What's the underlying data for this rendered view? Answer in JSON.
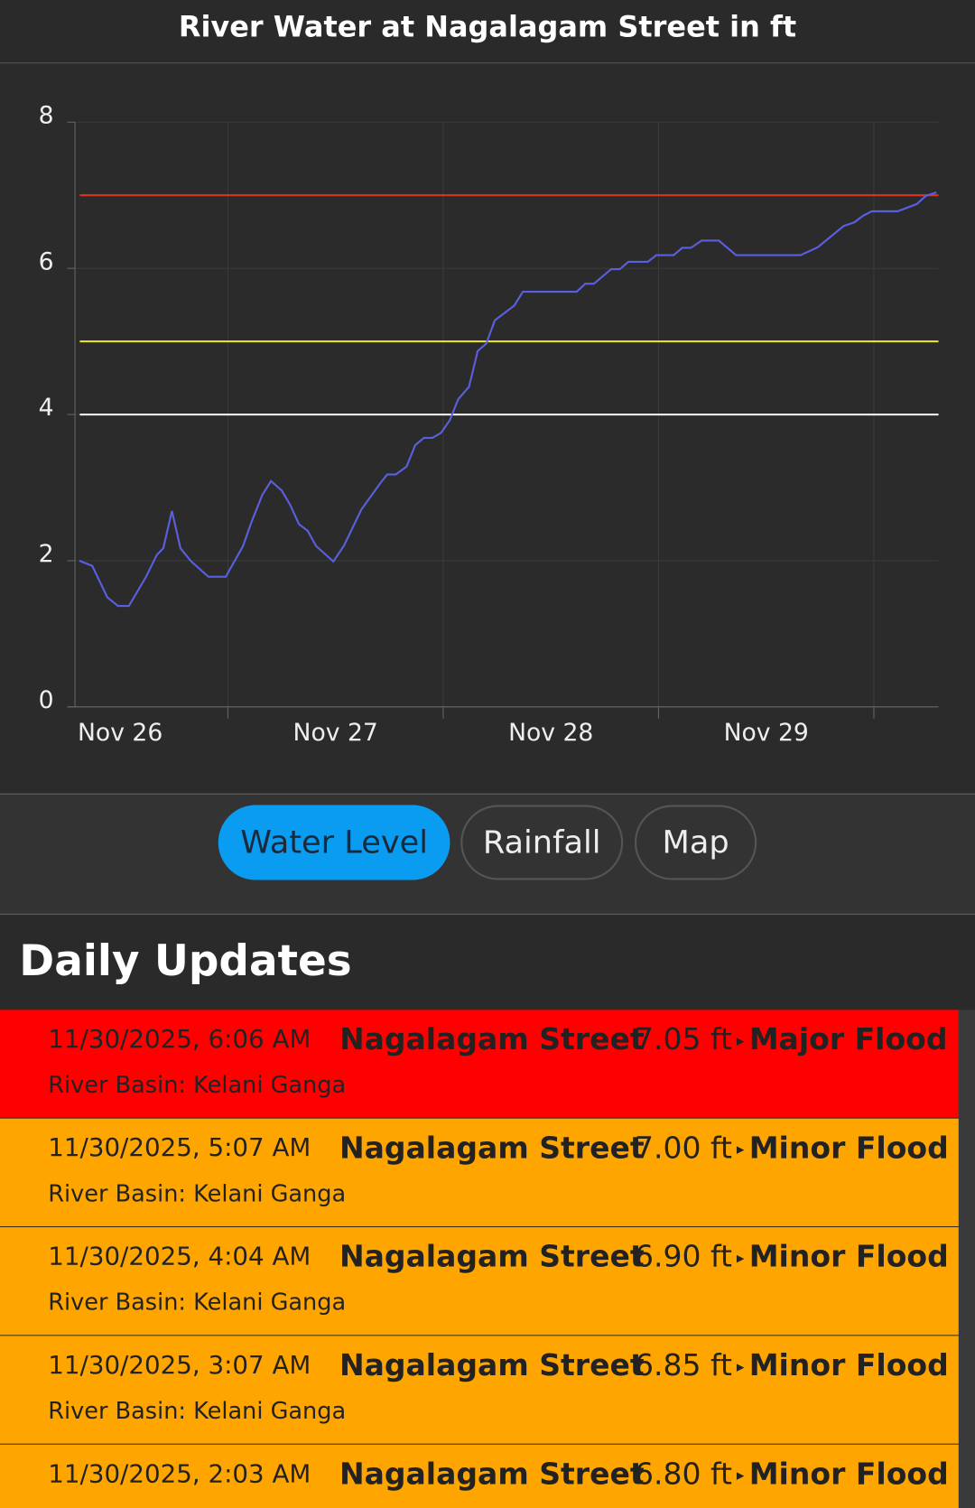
{
  "header": {
    "title": "River Water at Nagalagam Street in ft"
  },
  "chart_data": {
    "type": "line",
    "xlim": [
      26.29,
      30.3
    ],
    "xticks": [
      {
        "value": 26.5,
        "label": "Nov 26"
      },
      {
        "value": 27.5,
        "label": "Nov 27"
      },
      {
        "value": 28.5,
        "label": "Nov 28"
      },
      {
        "value": 29.5,
        "label": "Nov 29"
      }
    ],
    "ylim": [
      0,
      8
    ],
    "yticks": [
      0,
      2,
      4,
      6,
      8
    ],
    "grid": true,
    "thresholds": [
      {
        "value": 7,
        "color": "#e0321e"
      },
      {
        "value": 5,
        "color": "#e8e01a"
      },
      {
        "value": 4,
        "color": "#f2f2f2"
      }
    ],
    "series": [
      {
        "color": "#5a5fe0",
        "x": [
          26.31,
          26.37,
          26.44,
          26.49,
          26.54,
          26.62,
          26.67,
          26.7,
          26.74,
          26.78,
          26.83,
          26.91,
          26.99,
          27.07,
          27.11,
          27.16,
          27.2,
          27.25,
          27.29,
          27.33,
          27.37,
          27.41,
          27.49,
          27.54,
          27.62,
          27.71,
          27.74,
          27.78,
          27.83,
          27.87,
          27.91,
          27.95,
          27.99,
          28.03,
          28.07,
          28.12,
          28.16,
          28.2,
          28.24,
          28.33,
          28.37,
          28.62,
          28.66,
          28.7,
          28.78,
          28.82,
          28.86,
          28.95,
          28.99,
          29.07,
          29.11,
          29.15,
          29.2,
          29.28,
          29.36,
          29.66,
          29.74,
          29.86,
          29.91,
          29.95,
          29.99,
          30.11,
          30.2,
          30.24,
          30.29
        ],
        "values": [
          2.0,
          1.93,
          1.5,
          1.38,
          1.38,
          1.78,
          2.08,
          2.17,
          2.68,
          2.17,
          1.99,
          1.78,
          1.78,
          2.2,
          2.53,
          2.9,
          3.09,
          2.96,
          2.76,
          2.5,
          2.41,
          2.2,
          1.99,
          2.21,
          2.7,
          3.07,
          3.18,
          3.18,
          3.29,
          3.58,
          3.68,
          3.68,
          3.75,
          3.92,
          4.21,
          4.38,
          4.87,
          4.97,
          5.29,
          5.49,
          5.68,
          5.68,
          5.79,
          5.79,
          5.99,
          5.99,
          6.09,
          6.09,
          6.18,
          6.18,
          6.28,
          6.28,
          6.38,
          6.38,
          6.18,
          6.18,
          6.29,
          6.58,
          6.63,
          6.72,
          6.78,
          6.78,
          6.88,
          6.99,
          7.04
        ]
      }
    ]
  },
  "tabs": [
    {
      "label": "Water Level",
      "active": true
    },
    {
      "label": "Rainfall",
      "active": false
    },
    {
      "label": "Map",
      "active": false
    }
  ],
  "updates": {
    "heading": "Daily Updates",
    "items": [
      {
        "time": "11/30/2025, 6:06 AM",
        "station": "Nagalagam Street",
        "level": "7.05 ft",
        "status": "Major Flood",
        "color": "#ff0000",
        "basin": "River Basin: Kelani Ganga"
      },
      {
        "time": "11/30/2025, 5:07 AM",
        "station": "Nagalagam Street",
        "level": "7.00 ft",
        "status": "Minor Flood",
        "color": "#ffa500",
        "basin": "River Basin: Kelani Ganga"
      },
      {
        "time": "11/30/2025, 4:04 AM",
        "station": "Nagalagam Street",
        "level": "6.90 ft",
        "status": "Minor Flood",
        "color": "#ffa500",
        "basin": "River Basin: Kelani Ganga"
      },
      {
        "time": "11/30/2025, 3:07 AM",
        "station": "Nagalagam Street",
        "level": "6.85 ft",
        "status": "Minor Flood",
        "color": "#ffa500",
        "basin": "River Basin: Kelani Ganga"
      },
      {
        "time": "11/30/2025, 2:03 AM",
        "station": "Nagalagam Street",
        "level": "6.80 ft",
        "status": "Minor Flood",
        "color": "#ffa500"
      }
    ]
  }
}
